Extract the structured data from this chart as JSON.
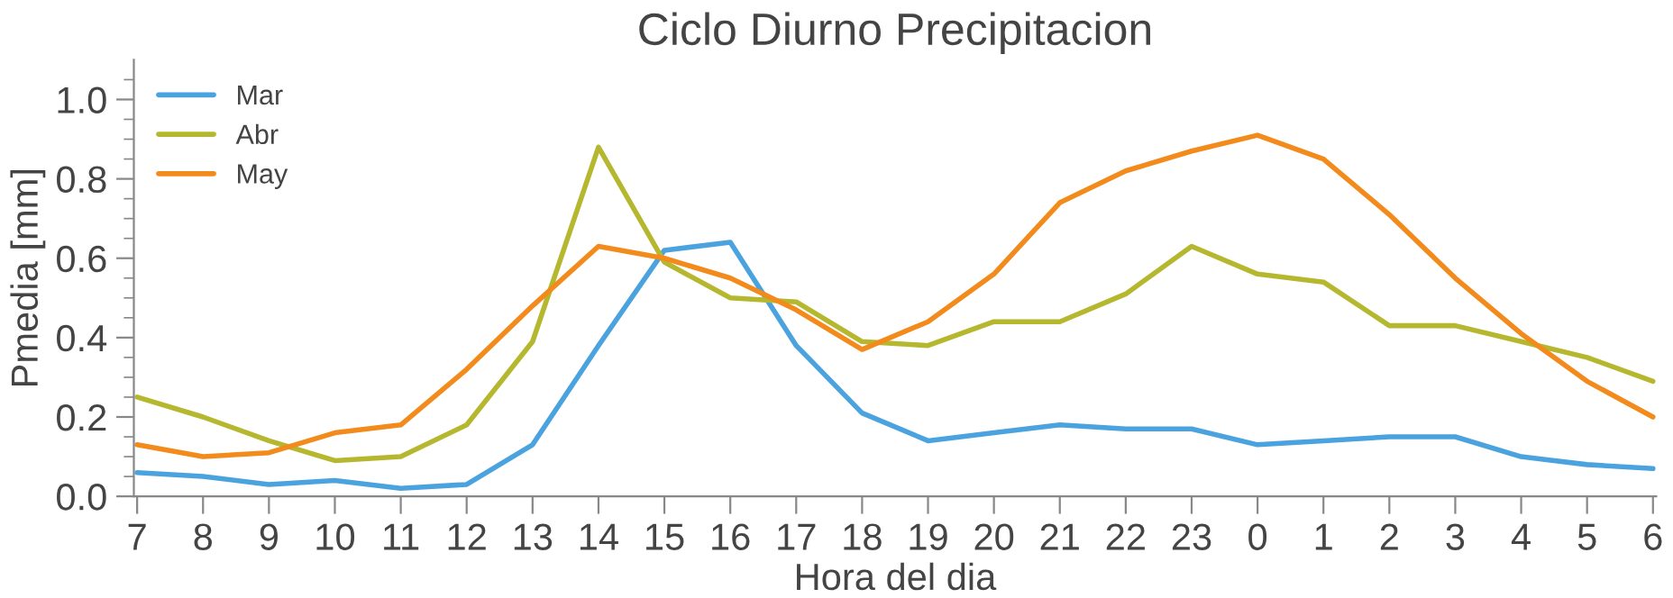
{
  "chart_data": {
    "type": "line",
    "title": "Ciclo Diurno Precipitacion",
    "xlabel": "Hora del dia",
    "ylabel": "Pmedia [mm]",
    "categories": [
      "7",
      "8",
      "9",
      "10",
      "11",
      "12",
      "13",
      "14",
      "15",
      "16",
      "17",
      "18",
      "19",
      "20",
      "21",
      "22",
      "23",
      "0",
      "1",
      "2",
      "3",
      "4",
      "5",
      "6"
    ],
    "series": [
      {
        "name": "Mar",
        "color": "#4aa3df",
        "values": [
          0.06,
          0.05,
          0.03,
          0.04,
          0.02,
          0.03,
          0.13,
          0.38,
          0.62,
          0.64,
          0.38,
          0.21,
          0.14,
          0.16,
          0.18,
          0.17,
          0.17,
          0.13,
          0.14,
          0.15,
          0.15,
          0.1,
          0.08,
          0.07
        ]
      },
      {
        "name": "Abr",
        "color": "#b5b82e",
        "values": [
          0.25,
          0.2,
          0.14,
          0.09,
          0.1,
          0.18,
          0.39,
          0.88,
          0.59,
          0.5,
          0.49,
          0.39,
          0.38,
          0.44,
          0.44,
          0.51,
          0.63,
          0.56,
          0.54,
          0.43,
          0.43,
          0.39,
          0.35,
          0.29
        ]
      },
      {
        "name": "May",
        "color": "#f28a1c",
        "values": [
          0.13,
          0.1,
          0.11,
          0.16,
          0.18,
          0.32,
          0.48,
          0.63,
          0.6,
          0.55,
          0.47,
          0.37,
          0.44,
          0.56,
          0.74,
          0.82,
          0.87,
          0.91,
          0.85,
          0.71,
          0.55,
          0.41,
          0.29,
          0.2
        ]
      }
    ],
    "ylim": [
      0,
      1.1
    ],
    "yticks": [
      {
        "value": 0,
        "label": "0.0"
      },
      {
        "value": 0.05,
        "label": null
      },
      {
        "value": 0.1,
        "label": null
      },
      {
        "value": 0.15,
        "label": null
      },
      {
        "value": 0.2,
        "label": "0.2"
      },
      {
        "value": 0.25,
        "label": null
      },
      {
        "value": 0.3,
        "label": null
      },
      {
        "value": 0.35,
        "label": null
      },
      {
        "value": 0.4,
        "label": "0.4"
      },
      {
        "value": 0.45,
        "label": null
      },
      {
        "value": 0.5,
        "label": null
      },
      {
        "value": 0.55,
        "label": null
      },
      {
        "value": 0.6,
        "label": "0.6"
      },
      {
        "value": 0.65,
        "label": null
      },
      {
        "value": 0.7,
        "label": null
      },
      {
        "value": 0.75,
        "label": null
      },
      {
        "value": 0.8,
        "label": "0.8"
      },
      {
        "value": 0.85,
        "label": null
      },
      {
        "value": 0.9,
        "label": null
      },
      {
        "value": 0.95,
        "label": null
      },
      {
        "value": 1,
        "label": "1.0"
      },
      {
        "value": 1.05,
        "label": null
      }
    ],
    "legend": "top left",
    "grid": false,
    "marker": "none",
    "line_style": "solid"
  }
}
